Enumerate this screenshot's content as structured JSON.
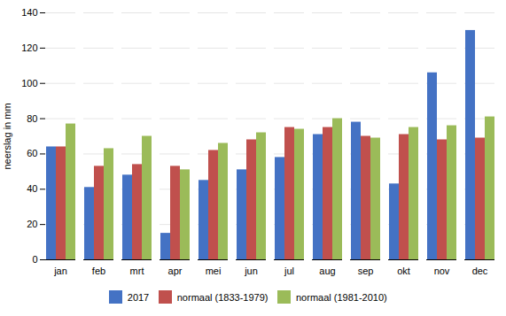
{
  "chart_data": {
    "type": "bar",
    "categories": [
      "jan",
      "feb",
      "mrt",
      "apr",
      "mei",
      "jun",
      "jul",
      "aug",
      "sep",
      "okt",
      "nov",
      "dec"
    ],
    "series": [
      {
        "name": "2017",
        "color": "#4472C4",
        "values": [
          64,
          41,
          48,
          15,
          45,
          51,
          58,
          71,
          78,
          43,
          106,
          130
        ]
      },
      {
        "name": "normaal (1833-1979)",
        "color": "#C0504D",
        "values": [
          64,
          53,
          54,
          53,
          62,
          68,
          75,
          75,
          70,
          71,
          68,
          69
        ]
      },
      {
        "name": "normaal (1981-2010)",
        "color": "#9BBB59",
        "values": [
          77,
          63,
          70,
          51,
          66,
          72,
          74,
          80,
          69,
          75,
          76,
          81
        ]
      }
    ],
    "ylabel": "neerslag in mm",
    "ylim": [
      0,
      140
    ],
    "yticks": [
      0,
      20,
      40,
      60,
      80,
      100,
      120,
      140
    ],
    "grid": true,
    "legend": "bottom"
  }
}
